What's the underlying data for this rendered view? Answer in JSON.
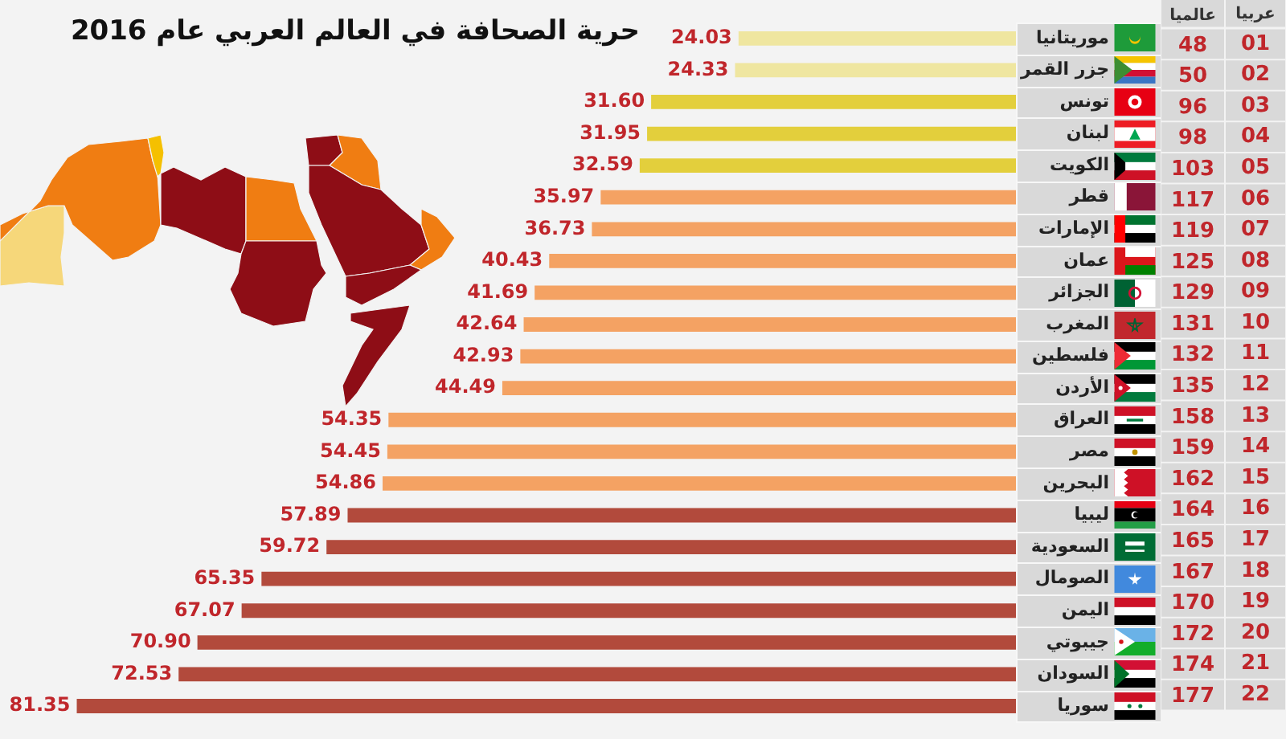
{
  "chart_data": [
    {
      "type": "bar",
      "orientation": "horizontal",
      "title": "حرية الصحافة في العالم العربي عام 2016",
      "categories": [
        "موريتانيا",
        "جزر القمر",
        "تونس",
        "لبنان",
        "الكويت",
        "قطر",
        "الإمارات",
        "عمان",
        "الجزائر",
        "المغرب",
        "فلسطين",
        "الأردن",
        "العراق",
        "مصر",
        "البحرين",
        "ليبيا",
        "السعودية",
        "الصومال",
        "اليمن",
        "جيبوتي",
        "السودان",
        "سوريا"
      ],
      "values": [
        24.03,
        24.33,
        31.6,
        31.95,
        32.59,
        35.97,
        36.73,
        40.43,
        41.69,
        42.64,
        42.93,
        44.49,
        54.35,
        54.45,
        54.86,
        57.89,
        59.72,
        65.35,
        67.07,
        70.9,
        72.53,
        81.35
      ],
      "value_labels": [
        "24.03",
        "24.33",
        "31.60",
        "31.95",
        "32.59",
        "35.97",
        "36.73",
        "40.43",
        "41.69",
        "42.64",
        "42.93",
        "44.49",
        "54.35",
        "54.45",
        "54.86",
        "57.89",
        "59.72",
        "65.35",
        "67.07",
        "70.90",
        "72.53",
        "81.35"
      ],
      "colors": [
        "#efe6a0",
        "#efe6a0",
        "#e3cf3c",
        "#e3cf3c",
        "#e3cf3c",
        "#f4a263",
        "#f4a263",
        "#f4a263",
        "#f4a263",
        "#f4a263",
        "#f4a263",
        "#f4a263",
        "#f4a263",
        "#f4a263",
        "#f4a263",
        "#b24a3c",
        "#b24a3c",
        "#b24a3c",
        "#b24a3c",
        "#b24a3c",
        "#b24a3c",
        "#b24a3c"
      ],
      "xlim": [
        88,
        0
      ],
      "tick_labels": "y"
    },
    {
      "type": "heatmap",
      "categories": [
        "عالميا"
      ],
      "ylabel": "عربيا",
      "y_categories": [
        "01",
        "02",
        "03",
        "04",
        "05",
        "06",
        "07",
        "08",
        "09",
        "10",
        "11",
        "12",
        "13",
        "14",
        "15",
        "16",
        "17",
        "18",
        "19",
        "20",
        "21",
        "22"
      ],
      "cells": [
        [
          48
        ],
        [
          50
        ],
        [
          96
        ],
        [
          98
        ],
        [
          103
        ],
        [
          117
        ],
        [
          119
        ],
        [
          125
        ],
        [
          129
        ],
        [
          131
        ],
        [
          132
        ],
        [
          135
        ],
        [
          158
        ],
        [
          159
        ],
        [
          162
        ],
        [
          164
        ],
        [
          165
        ],
        [
          167
        ],
        [
          170
        ],
        [
          172
        ],
        [
          174
        ],
        [
          177
        ]
      ],
      "data_labels": true,
      "color": "#d9d9d9"
    }
  ]
}
